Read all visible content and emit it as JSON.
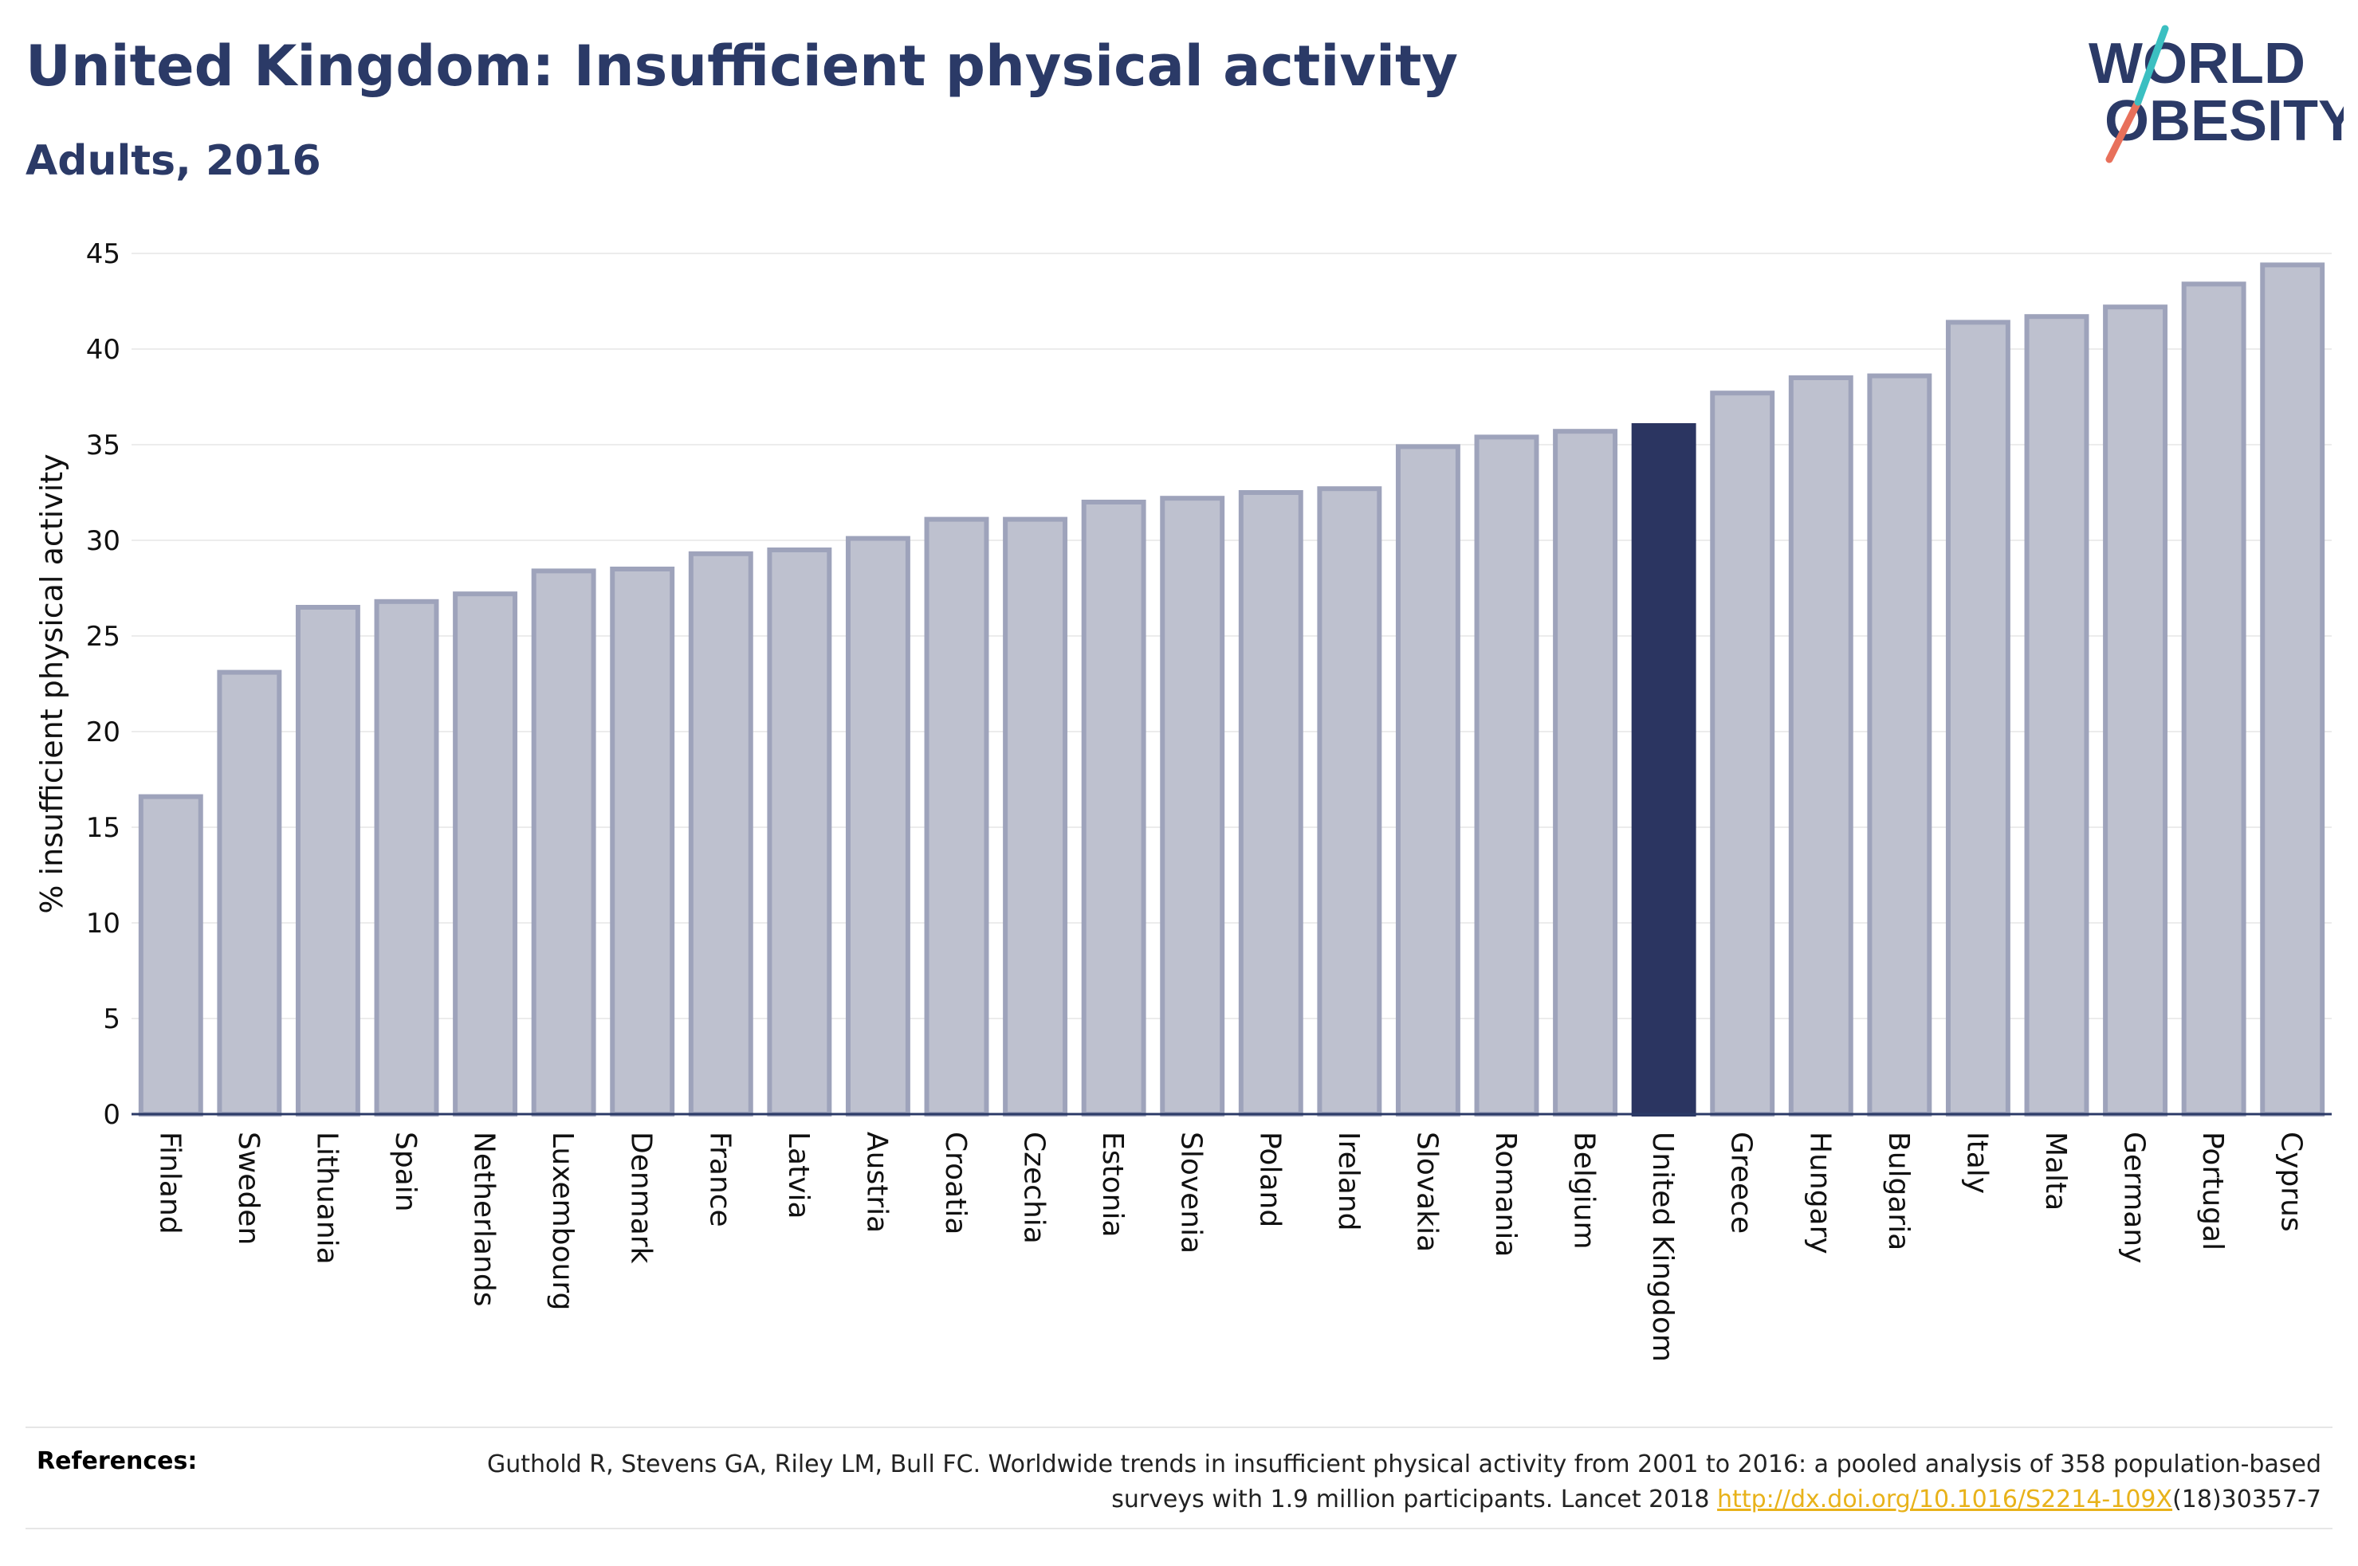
{
  "header": {
    "title": "United Kingdom: Insufficient physical activity",
    "subtitle": "Adults, 2016"
  },
  "logo": {
    "line1": "WORLD",
    "line2": "OBESITY",
    "icon": "slash-logo-icon"
  },
  "colors": {
    "highlight": "#2b3561",
    "bar_fill": "#bec1cf",
    "bar_stroke": "#9ea3bb",
    "title": "#2b3a67",
    "link": "#e8b21a",
    "logo_teal": "#3bbfc1",
    "logo_coral": "#e8705b"
  },
  "chart_data": {
    "type": "bar",
    "title": "United Kingdom: Insufficient physical activity",
    "subtitle": "Adults, 2016",
    "xlabel": "",
    "ylabel": "% insufficient physical activity",
    "ylim": [
      0,
      45
    ],
    "yticks": [
      0,
      5,
      10,
      15,
      20,
      25,
      30,
      35,
      40,
      45
    ],
    "grid": true,
    "highlight": "United Kingdom",
    "categories": [
      "Finland",
      "Sweden",
      "Lithuania",
      "Spain",
      "Netherlands",
      "Luxembourg",
      "Denmark",
      "France",
      "Latvia",
      "Austria",
      "Croatia",
      "Czechia",
      "Estonia",
      "Slovenia",
      "Poland",
      "Ireland",
      "Slovakia",
      "Romania",
      "Belgium",
      "United Kingdom",
      "Greece",
      "Hungary",
      "Bulgaria",
      "Italy",
      "Malta",
      "Germany",
      "Portugal",
      "Cyprus"
    ],
    "values": [
      16.6,
      23.1,
      26.5,
      26.8,
      27.2,
      28.4,
      28.5,
      29.3,
      29.5,
      30.1,
      31.1,
      31.1,
      32.0,
      32.2,
      32.5,
      32.7,
      34.9,
      35.4,
      35.7,
      36.0,
      37.7,
      38.5,
      38.6,
      41.4,
      41.7,
      42.2,
      43.4,
      44.4
    ]
  },
  "references": {
    "label": "References:",
    "text_before": "Guthold R, Stevens GA, Riley LM, Bull FC. Worldwide trends in insufficient physical activity from 2001 to 2016: a pooled analysis of 358 population-based surveys with 1.9 million participants. Lancet 2018 ",
    "link": "http://dx.doi.org/10.1016/S2214-109X",
    "text_after": "(18)30357-7"
  }
}
